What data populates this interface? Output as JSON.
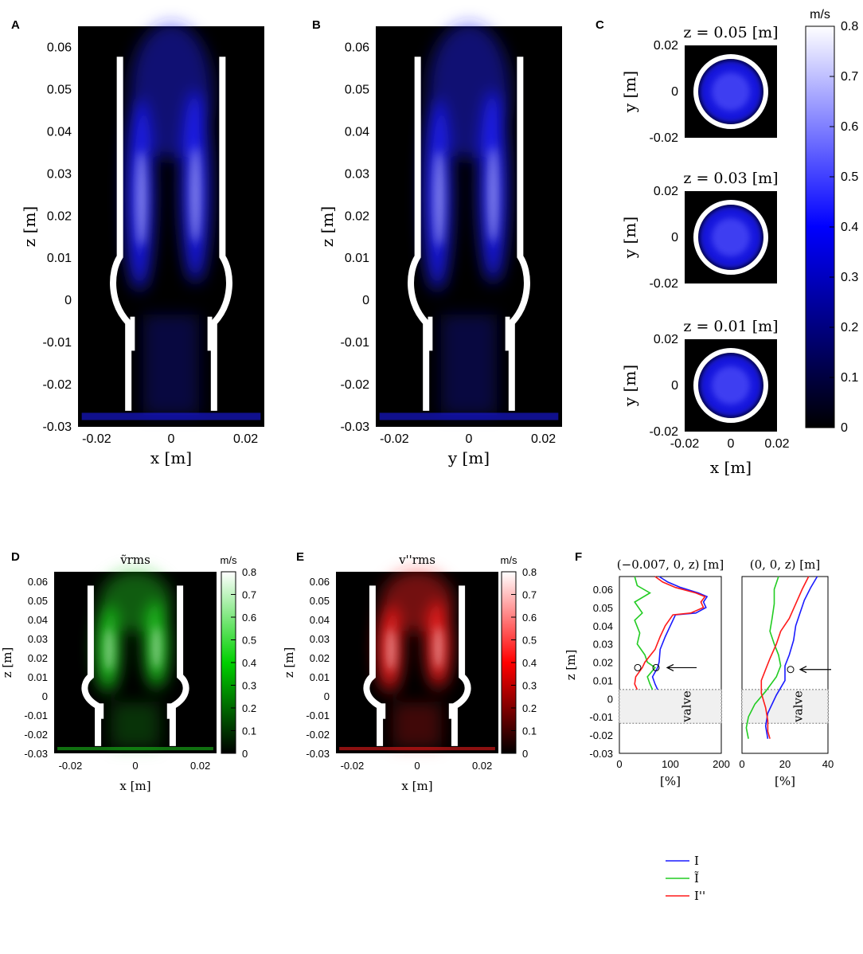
{
  "panels": {
    "A": {
      "letter": "A",
      "xlabel": "x [m]",
      "ylabel": "z [m]",
      "xticks": [
        "-0.02",
        "0",
        "0.02"
      ],
      "yticks": [
        "0.06",
        "0.05",
        "0.04",
        "0.03",
        "0.02",
        "0.01",
        "0",
        "-0.01",
        "-0.02",
        "-0.03"
      ]
    },
    "B": {
      "letter": "B",
      "xlabel": "y [m]",
      "ylabel": "z [m]",
      "xticks": [
        "-0.02",
        "0",
        "0.02"
      ],
      "yticks": [
        "0.06",
        "0.05",
        "0.04",
        "0.03",
        "0.02",
        "0.01",
        "0",
        "-0.01",
        "-0.02",
        "-0.03"
      ]
    },
    "C": {
      "letter": "C",
      "titles": [
        "z = 0.05 [m]",
        "z = 0.03 [m]",
        "z = 0.01 [m]"
      ],
      "ylabel": "y [m]",
      "xlabel": "x [m]",
      "yticks": [
        "0.02",
        "0",
        "-0.02"
      ],
      "xticks": [
        "-0.02",
        "0",
        "0.02"
      ]
    },
    "D": {
      "letter": "D",
      "title": "ṽrms",
      "xlabel": "x [m]",
      "ylabel": "z [m]",
      "xticks": [
        "-0.02",
        "0",
        "0.02"
      ],
      "yticks": [
        "0.06",
        "0.05",
        "0.04",
        "0.03",
        "0.02",
        "0.01",
        "0",
        "-0.01",
        "-0.02",
        "-0.03"
      ]
    },
    "E": {
      "letter": "E",
      "title": "v''rms",
      "xlabel": "x [m]",
      "ylabel": "z [m]",
      "xticks": [
        "-0.02",
        "0",
        "0.02"
      ],
      "yticks": [
        "0.06",
        "0.05",
        "0.04",
        "0.03",
        "0.02",
        "0.01",
        "0",
        "-0.01",
        "-0.02",
        "-0.03"
      ]
    },
    "F": {
      "letter": "F",
      "left_title": "(−0.007, 0, z) [m]",
      "right_title": "(0, 0, z) [m]",
      "ylabel": "z [m]",
      "xlabel": "[%]",
      "left_xticks": [
        "0",
        "100",
        "200"
      ],
      "right_xticks": [
        "0",
        "20",
        "40"
      ],
      "yticks": [
        "0.06",
        "0.05",
        "0.04",
        "0.03",
        "0.02",
        "0.01",
        "0",
        "-0.01",
        "-0.02",
        "-0.03"
      ],
      "valve_label": "valve"
    }
  },
  "colorbars": {
    "blue": {
      "unit": "m/s",
      "ticks": [
        "0.8",
        "0.7",
        "0.6",
        "0.5",
        "0.4",
        "0.3",
        "0.2",
        "0.1",
        "0"
      ]
    },
    "green": {
      "unit": "m/s",
      "ticks": [
        "0.8",
        "0.7",
        "0.6",
        "0.5",
        "0.4",
        "0.3",
        "0.2",
        "0.1",
        "0"
      ]
    },
    "red": {
      "unit": "m/s",
      "ticks": [
        "0.8",
        "0.7",
        "0.6",
        "0.5",
        "0.4",
        "0.3",
        "0.2",
        "0.1",
        "0"
      ]
    }
  },
  "colors": {
    "blue": "#1a1aff",
    "green": "#22cc22",
    "red": "#ff1a1a",
    "ink": "#111111"
  },
  "chart_data": [
    {
      "type": "heatmap",
      "panel": "A",
      "xlabel": "x [m]",
      "ylabel": "z [m]",
      "xlim": [
        -0.02,
        0.02
      ],
      "ylim": [
        -0.03,
        0.065
      ],
      "colorbar_unit": "m/s",
      "clim": [
        0,
        0.8
      ]
    },
    {
      "type": "heatmap",
      "panel": "B",
      "xlabel": "y [m]",
      "ylabel": "z [m]",
      "xlim": [
        -0.02,
        0.02
      ],
      "ylim": [
        -0.03,
        0.065
      ],
      "clim": [
        0,
        0.8
      ]
    },
    {
      "type": "heatmap",
      "panel": "C",
      "titles": [
        "z = 0.05 [m]",
        "z = 0.03 [m]",
        "z = 0.01 [m]"
      ],
      "xlim": [
        -0.02,
        0.02
      ],
      "ylim": [
        -0.02,
        0.02
      ],
      "clim": [
        0,
        0.8
      ]
    },
    {
      "type": "heatmap",
      "panel": "D",
      "title": "ṽrms",
      "xlim": [
        -0.02,
        0.02
      ],
      "ylim": [
        -0.03,
        0.065
      ],
      "clim": [
        0,
        0.8
      ]
    },
    {
      "type": "heatmap",
      "panel": "E",
      "title": "v''rms",
      "xlim": [
        -0.02,
        0.02
      ],
      "ylim": [
        -0.03,
        0.065
      ],
      "clim": [
        0,
        0.8
      ]
    },
    {
      "type": "line",
      "panel": "F-left",
      "title": "(−0.007, 0, z) [m]",
      "xlabel": "[%]",
      "ylabel": "z [m]",
      "xlim": [
        0,
        200
      ],
      "ylim": [
        -0.03,
        0.067
      ],
      "series": [
        {
          "name": "I",
          "color": "#1a1aff",
          "points": [
            [
              78,
              0.067
            ],
            [
              95,
              0.064
            ],
            [
              120,
              0.061
            ],
            [
              155,
              0.058
            ],
            [
              172,
              0.056
            ],
            [
              165,
              0.053
            ],
            [
              170,
              0.05
            ],
            [
              150,
              0.047
            ],
            [
              110,
              0.046
            ],
            [
              100,
              0.04
            ],
            [
              90,
              0.034
            ],
            [
              80,
              0.027
            ],
            [
              78,
              0.02
            ],
            [
              75,
              0.017
            ],
            [
              65,
              0.012
            ],
            [
              70,
              0.008
            ],
            [
              75,
              0.005
            ]
          ]
        },
        {
          "name": "Ĩ",
          "color": "#22cc22",
          "points": [
            [
              30,
              0.067
            ],
            [
              35,
              0.062
            ],
            [
              60,
              0.058
            ],
            [
              30,
              0.053
            ],
            [
              45,
              0.047
            ],
            [
              30,
              0.043
            ],
            [
              40,
              0.036
            ],
            [
              35,
              0.03
            ],
            [
              50,
              0.024
            ],
            [
              55,
              0.02
            ],
            [
              70,
              0.017
            ],
            [
              55,
              0.012
            ],
            [
              60,
              0.008
            ],
            [
              65,
              0.005
            ]
          ]
        },
        {
          "name": "I''",
          "color": "#ff1a1a",
          "points": [
            [
              70,
              0.067
            ],
            [
              85,
              0.064
            ],
            [
              110,
              0.061
            ],
            [
              150,
              0.058
            ],
            [
              168,
              0.056
            ],
            [
              160,
              0.053
            ],
            [
              165,
              0.05
            ],
            [
              140,
              0.047
            ],
            [
              105,
              0.046
            ],
            [
              90,
              0.04
            ],
            [
              80,
              0.034
            ],
            [
              70,
              0.027
            ],
            [
              50,
              0.02
            ],
            [
              45,
              0.017
            ],
            [
              32,
              0.012
            ],
            [
              30,
              0.008
            ],
            [
              35,
              0.005
            ]
          ]
        }
      ]
    },
    {
      "type": "line",
      "panel": "F-right",
      "title": "(0, 0, z) [m]",
      "xlabel": "[%]",
      "xlim": [
        0,
        40
      ],
      "ylim": [
        -0.03,
        0.067
      ],
      "series": [
        {
          "name": "I",
          "color": "#1a1aff",
          "points": [
            [
              35,
              0.067
            ],
            [
              32,
              0.061
            ],
            [
              29,
              0.054
            ],
            [
              27,
              0.047
            ],
            [
              25,
              0.04
            ],
            [
              24,
              0.032
            ],
            [
              22,
              0.024
            ],
            [
              20,
              0.018
            ],
            [
              20,
              0.01
            ],
            [
              16,
              0.002
            ],
            [
              12,
              -0.008
            ],
            [
              11,
              -0.015
            ],
            [
              12,
              -0.022
            ]
          ]
        },
        {
          "name": "Ĩ",
          "color": "#22cc22",
          "points": [
            [
              17,
              0.067
            ],
            [
              15,
              0.06
            ],
            [
              15,
              0.052
            ],
            [
              14,
              0.044
            ],
            [
              13,
              0.037
            ],
            [
              15,
              0.03
            ],
            [
              17,
              0.024
            ],
            [
              18,
              0.018
            ],
            [
              16,
              0.012
            ],
            [
              11,
              0.004
            ],
            [
              6,
              -0.003
            ],
            [
              3,
              -0.01
            ],
            [
              2,
              -0.016
            ],
            [
              3,
              -0.022
            ]
          ]
        },
        {
          "name": "I''",
          "color": "#ff1a1a",
          "points": [
            [
              31,
              0.067
            ],
            [
              28,
              0.06
            ],
            [
              25,
              0.052
            ],
            [
              22,
              0.044
            ],
            [
              18,
              0.037
            ],
            [
              16,
              0.03
            ],
            [
              13,
              0.022
            ],
            [
              11,
              0.016
            ],
            [
              9,
              0.01
            ],
            [
              9,
              0.003
            ],
            [
              11,
              -0.005
            ],
            [
              12,
              -0.012
            ],
            [
              12,
              -0.018
            ],
            [
              13,
              -0.022
            ]
          ]
        }
      ]
    }
  ]
}
